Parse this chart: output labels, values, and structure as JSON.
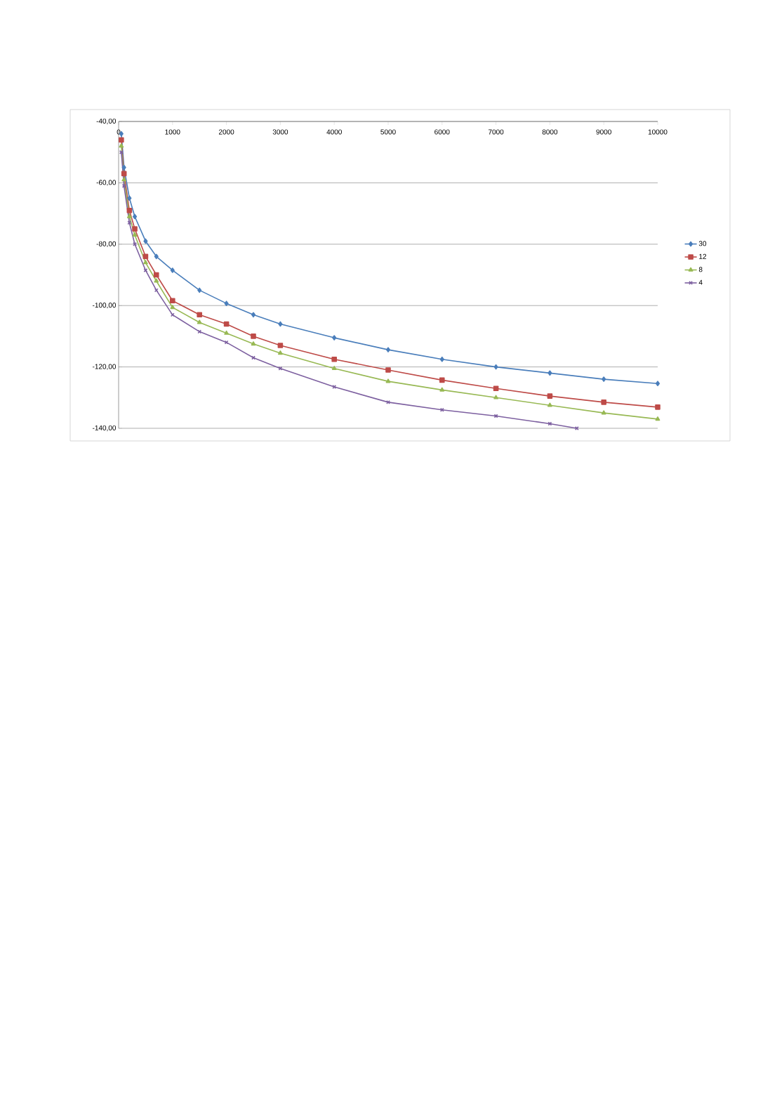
{
  "chart_data": {
    "type": "line",
    "xlim": [
      0,
      10000
    ],
    "ylim": [
      -140,
      -40
    ],
    "xticks": [
      0,
      1000,
      2000,
      3000,
      4000,
      5000,
      6000,
      7000,
      8000,
      9000,
      10000
    ],
    "yticks": [
      {
        "value": -40,
        "label": "-40,00"
      },
      {
        "value": -60,
        "label": "-60,00"
      },
      {
        "value": -80,
        "label": "-80,00"
      },
      {
        "value": -100,
        "label": "-100,00"
      },
      {
        "value": -120,
        "label": "-120,00"
      },
      {
        "value": -140,
        "label": "-140,00"
      }
    ],
    "grid": "y",
    "legend": "right",
    "x": [
      50,
      100,
      200,
      300,
      500,
      700,
      1000,
      1500,
      2000,
      2500,
      3000,
      4000,
      5000,
      6000,
      7000,
      8000,
      9000,
      10000
    ],
    "series": [
      {
        "name": "30",
        "color": "#4a7ebb",
        "marker": "diamond",
        "values": [
          -44,
          -55,
          -65,
          -71,
          -79,
          -84,
          -88.5,
          -95,
          -99.3,
          -103,
          -106,
          -110.5,
          -114.4,
          -117.5,
          -120,
          -122,
          -124,
          -125.4
        ]
      },
      {
        "name": "12",
        "color": "#be4b48",
        "marker": "square",
        "values": [
          -46,
          -57,
          -69,
          -75,
          -84,
          -90,
          -98.4,
          -103,
          -106,
          -110,
          -113,
          -117.5,
          -121,
          -124.3,
          -127,
          -129.5,
          -131.5,
          -133.1
        ]
      },
      {
        "name": "8",
        "color": "#98b954",
        "marker": "triangle",
        "values": [
          -48,
          -59,
          -71,
          -77,
          -86,
          -92,
          -100.6,
          -105.5,
          -109,
          -112.5,
          -115.5,
          -120.5,
          -124.7,
          -127.5,
          -130,
          -132.5,
          -135,
          -137
        ]
      },
      {
        "name": "4",
        "color": "#7d60a0",
        "marker": "cross",
        "x": [
          50,
          100,
          200,
          300,
          500,
          700,
          1000,
          1500,
          2000,
          2500,
          3000,
          4000,
          5000,
          6000,
          7000,
          8000,
          8500
        ],
        "values": [
          -50,
          -61,
          -73,
          -80,
          -88.5,
          -95,
          -103,
          -108.5,
          -112,
          -117,
          -120.5,
          -126.5,
          -131.5,
          -134,
          -136,
          -138.5,
          -140
        ]
      }
    ]
  }
}
